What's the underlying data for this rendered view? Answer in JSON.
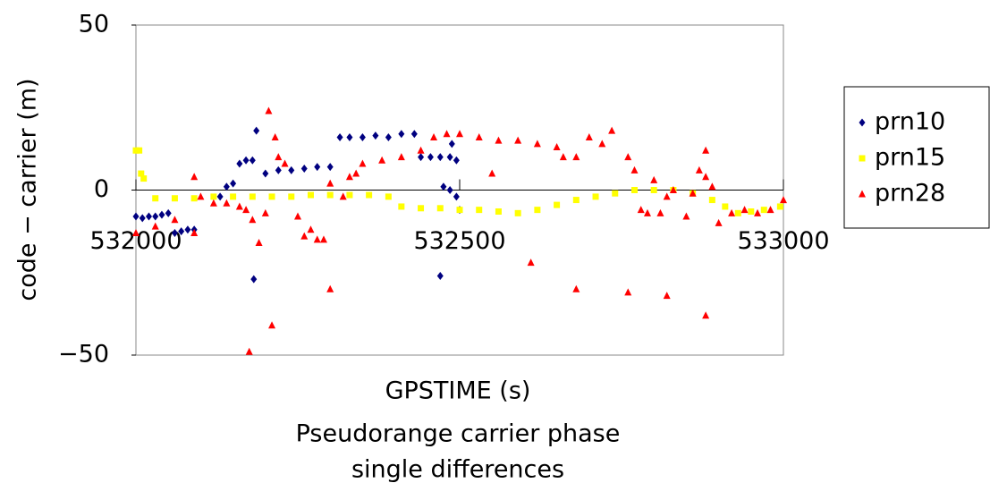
{
  "chart_data": {
    "type": "scatter",
    "title_lines": [
      "Pseudorange carrier phase",
      "single differences"
    ],
    "x_label": "GPSTIME (s)",
    "y_label": "code − carrier (m)",
    "xlim": [
      532000,
      533000
    ],
    "xticks": [
      532000,
      532500,
      533000
    ],
    "ylim": [
      -50,
      50
    ],
    "yticks": [
      50,
      0,
      {
        "value": -50,
        "label": "−50"
      }
    ],
    "legend": "right",
    "series": [
      {
        "name": "prn10",
        "color": "#000080",
        "marker": "diamond",
        "x": [
          532000,
          532010,
          532020,
          532030,
          532040,
          532050,
          532060,
          532070,
          532080,
          532090,
          532130,
          532140,
          532150,
          532160,
          532170,
          532180,
          532186,
          532182,
          532200,
          532220,
          532240,
          532260,
          532280,
          532300,
          532315,
          532330,
          532350,
          532370,
          532390,
          532410,
          532430,
          532440,
          532455,
          532470,
          532485,
          532495,
          532470,
          532488,
          532475,
          532485,
          532495,
          532500
        ],
        "values": [
          -8,
          -8.5,
          -8,
          -8,
          -7.5,
          -7,
          -13,
          -12.5,
          -12,
          -12,
          -2,
          1,
          2,
          8,
          9,
          9,
          18,
          -27,
          5,
          6,
          6,
          6.5,
          7,
          7,
          16,
          16,
          16,
          16.5,
          16,
          17,
          17,
          10,
          10,
          10,
          10,
          9,
          -26,
          14,
          1,
          0,
          -2,
          -6
        ]
      },
      {
        "name": "prn15",
        "color": "#ffff00",
        "marker": "square",
        "x": [
          532000,
          532005,
          532008,
          532012,
          532030,
          532060,
          532090,
          532120,
          532150,
          532180,
          532210,
          532240,
          532270,
          532300,
          532330,
          532360,
          532390,
          532410,
          532440,
          532470,
          532500,
          532530,
          532560,
          532590,
          532620,
          532650,
          532680,
          532710,
          532740,
          532770,
          532800,
          532830,
          532860,
          532890,
          532910,
          532930,
          532950,
          532970,
          532995
        ],
        "values": [
          12,
          12,
          5,
          3.5,
          -2.5,
          -2.5,
          -2.5,
          -2,
          -2,
          -2,
          -2,
          -2,
          -1.5,
          -1.5,
          -1.5,
          -1.5,
          -2,
          -5,
          -5.5,
          -5.5,
          -6,
          -6,
          -6.5,
          -7,
          -6,
          -4.5,
          -3,
          -2,
          -1,
          0,
          0,
          0,
          -1,
          -3,
          -5,
          -7,
          -6.5,
          -6,
          -5
        ]
      },
      {
        "name": "prn28",
        "color": "#ff0000",
        "marker": "triangle",
        "x": [
          532000,
          532030,
          532060,
          532090,
          532100,
          532090,
          532120,
          532140,
          532160,
          532170,
          532180,
          532175,
          532190,
          532200,
          532210,
          532205,
          532215,
          532220,
          532230,
          532250,
          532260,
          532270,
          532280,
          532290,
          532300,
          532300,
          532320,
          532330,
          532340,
          532350,
          532380,
          532410,
          532440,
          532460,
          532480,
          532500,
          532530,
          532560,
          532590,
          532620,
          532650,
          532660,
          532680,
          532550,
          532610,
          532680,
          532700,
          532720,
          532735,
          532760,
          532770,
          532790,
          532780,
          532760,
          532810,
          532800,
          532820,
          532830,
          532850,
          532820,
          532860,
          532870,
          532880,
          532890,
          532880,
          532880,
          532900,
          532920,
          532940,
          532960,
          532980,
          533000
        ],
        "values": [
          -13,
          -11,
          -9,
          -13,
          -2,
          4,
          -4,
          -4,
          -5,
          -6,
          -9,
          -49,
          -16,
          -7,
          -41,
          24,
          16,
          10,
          8,
          -8,
          -14,
          -12,
          -15,
          -15,
          -30,
          2,
          -2,
          4,
          5,
          8,
          9,
          10,
          12,
          16,
          17,
          17,
          16,
          15,
          15,
          14,
          13,
          10,
          10,
          5,
          -22,
          -30,
          16,
          14,
          18,
          10,
          6,
          -7,
          -6,
          -31,
          -7,
          3,
          -2,
          0,
          -8,
          -32,
          -1,
          6,
          4,
          1,
          -38,
          12,
          -10,
          -7,
          -6,
          -7,
          -6,
          -3
        ]
      }
    ]
  }
}
